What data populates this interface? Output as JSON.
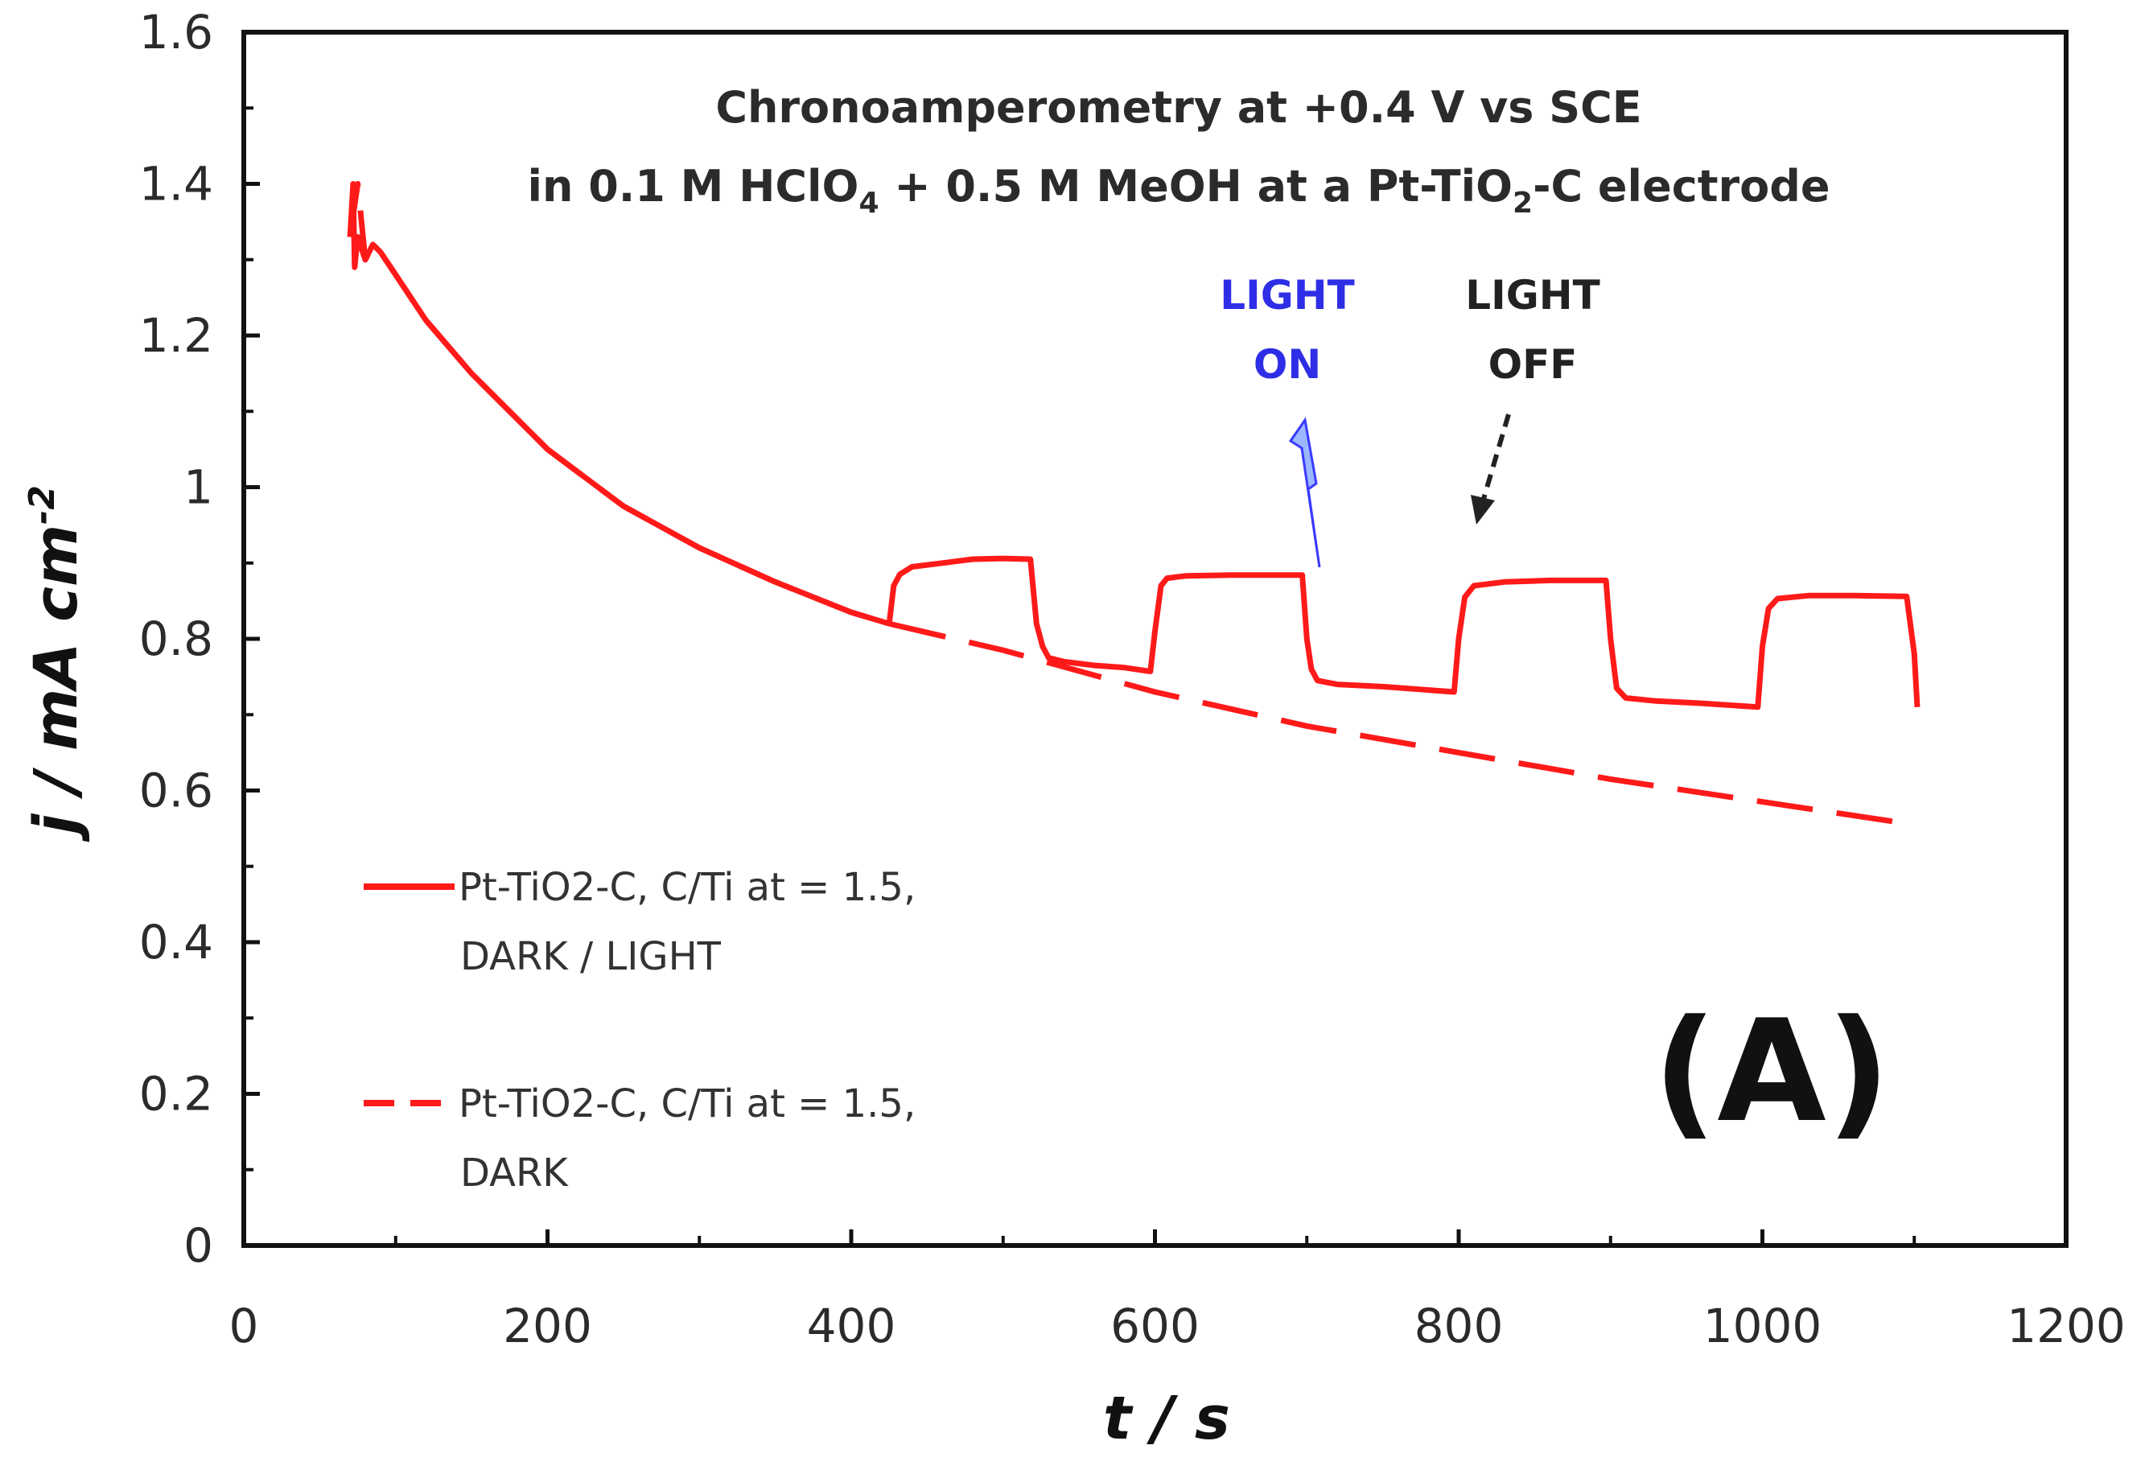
{
  "chart_data": {
    "type": "line",
    "title_line1": "Chronoamperometry at +0.4 V vs SCE",
    "title_line2_pre": "in 0.1 M HClO",
    "title_line2_sub1": "4",
    "title_line2_mid": " + 0.5 M MeOH at a Pt-TiO",
    "title_line2_sub2": "2",
    "title_line2_post": "-C electrode",
    "xlabel": "t / s",
    "ylabel_main": "j / mA cm",
    "ylabel_sup": "-2",
    "xlim": [
      0,
      1200
    ],
    "ylim": [
      0,
      1.6
    ],
    "xticks": [
      0,
      200,
      400,
      600,
      800,
      1000,
      1200
    ],
    "yticks": [
      0,
      0.2,
      0.4,
      0.6,
      0.8,
      1,
      1.2,
      1.4,
      1.6
    ],
    "ytick_labels": [
      "0",
      "0.2",
      "0.4",
      "0.6",
      "0.8",
      "1",
      "1.2",
      "1.4",
      "1.6"
    ],
    "xtick_labels": [
      "0",
      "200",
      "400",
      "600",
      "800",
      "1000",
      "1200"
    ],
    "series": [
      {
        "name": "Pt-TiO2-C, C/Ti at = 1.5, DARK / LIGHT",
        "legend_line1": "Pt-TiO2-C, C/Ti at = 1.5,",
        "legend_line2": "DARK / LIGHT",
        "style": "solid",
        "color": "#ff1a1a",
        "x": [
          70,
          72,
          73,
          75,
          80,
          85,
          90,
          100,
          120,
          150,
          200,
          250,
          300,
          350,
          400,
          425,
          428,
          432,
          440,
          460,
          480,
          500,
          518,
          522,
          526,
          530,
          540,
          560,
          580,
          597,
          600,
          604,
          608,
          620,
          650,
          680,
          697,
          700,
          703,
          707,
          720,
          750,
          797,
          800,
          804,
          810,
          830,
          860,
          897,
          900,
          904,
          910,
          930,
          960,
          997,
          1000,
          1004,
          1010,
          1030,
          1060,
          1095,
          1100,
          1102
        ],
        "y": [
          1.33,
          1.4,
          1.29,
          1.33,
          1.3,
          1.32,
          1.31,
          1.28,
          1.22,
          1.15,
          1.05,
          0.975,
          0.92,
          0.875,
          0.835,
          0.82,
          0.87,
          0.885,
          0.895,
          0.9,
          0.905,
          0.906,
          0.905,
          0.82,
          0.79,
          0.775,
          0.77,
          0.765,
          0.762,
          0.757,
          0.81,
          0.87,
          0.88,
          0.883,
          0.884,
          0.884,
          0.884,
          0.8,
          0.76,
          0.745,
          0.74,
          0.737,
          0.73,
          0.8,
          0.855,
          0.87,
          0.875,
          0.877,
          0.877,
          0.8,
          0.735,
          0.722,
          0.718,
          0.715,
          0.71,
          0.79,
          0.84,
          0.853,
          0.857,
          0.857,
          0.856,
          0.78,
          0.71
        ]
      },
      {
        "name": "Pt-TiO2-C, C/Ti at = 1.5, DARK",
        "legend_line1": "Pt-TiO2-C, C/Ti at = 1.5,",
        "legend_line2": "DARK",
        "style": "dashed",
        "color": "#ff1a1a",
        "x": [
          70,
          75,
          80,
          85,
          90,
          100,
          120,
          150,
          200,
          250,
          300,
          350,
          400,
          425,
          500,
          600,
          700,
          800,
          900,
          1000,
          1100
        ],
        "y": [
          1.33,
          1.4,
          1.3,
          1.32,
          1.31,
          1.28,
          1.22,
          1.15,
          1.05,
          0.975,
          0.92,
          0.875,
          0.835,
          0.82,
          0.785,
          0.73,
          0.685,
          0.65,
          0.615,
          0.585,
          0.555
        ]
      }
    ],
    "annotations": [
      {
        "line1": "LIGHT",
        "line2": "ON",
        "color": "#2e2ee6",
        "arrow": "zigzag",
        "x": 700,
        "y": 0.9
      },
      {
        "line1": "LIGHT",
        "line2": "OFF",
        "color": "#222222",
        "arrow": "dashed",
        "x": 805,
        "y": 0.96
      }
    ],
    "panel_label": "(A)"
  }
}
